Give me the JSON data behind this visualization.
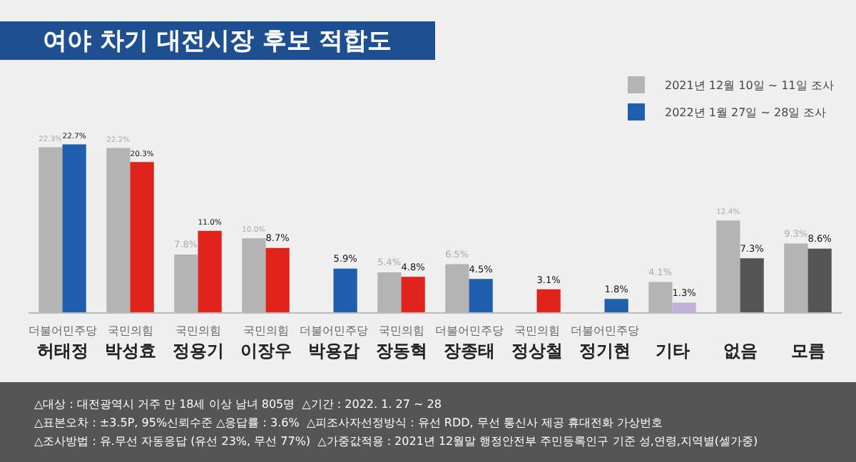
{
  "chart_data": {
    "type": "bar",
    "title": "여야 차기 대전시장 후보 적합도",
    "categories": [
      "더불어민주당\n허태정",
      "국민의힘\n박성효",
      "국민의힘\n정용기",
      "국민의힘\n이장우",
      "더불어민주당\n박용갑",
      "국민의힘\n장동혁",
      "더불어민주당\n장종태",
      "국민의힘\n정상철",
      "더불어민주당\n정기현",
      "기타",
      "없음",
      "모름"
    ],
    "series": [
      {
        "name": "2021년 12월 10일 ~ 11일 조사",
        "color": "#b4b4b4",
        "values": [
          22.3,
          22.2,
          7.8,
          10.0,
          null,
          5.4,
          6.5,
          null,
          null,
          4.1,
          12.4,
          9.3
        ],
        "value_labels": [
          "22.3%",
          "22.2%",
          "7.8%",
          "10.0%",
          null,
          "5.4%",
          "6.5%",
          null,
          null,
          "4.1%",
          "12.4%",
          "9.3%"
        ]
      },
      {
        "name": "2022년 1월 27일 ~ 28일 조사",
        "color": "#1f5fad",
        "colors": [
          "#1f5fad",
          "#e0231c",
          "#e0231c",
          "#e0231c",
          "#1f5fad",
          "#e0231c",
          "#1f5fad",
          "#e0231c",
          "#1f5fad",
          "#c2b0dc",
          "#555555",
          "#555555"
        ],
        "values": [
          22.7,
          20.3,
          11.0,
          8.7,
          5.9,
          4.8,
          4.5,
          3.1,
          1.8,
          1.3,
          7.3,
          8.6
        ],
        "value_labels": [
          "22.7%",
          "20.3%",
          "11.0%",
          "8.7%",
          "5.9%",
          "4.8%",
          "4.5%",
          "3.1%",
          "1.8%",
          "1.3%",
          "7.3%",
          "8.6%"
        ]
      }
    ],
    "legend": "top right",
    "grid": false,
    "annotations": [
      "△대상 : 대전광역시 거주 만 18세 이상 남녀 805명  △기간 : 2022. 1. 27 ~ 28",
      "△표본오차 : ±3.5P, 95%신뢰수준 △응답률 : 3.6%  △피조사자선정방식 : 유선 RDD, 무선 통신사 제공 휴대전화 가상번호",
      "△조사방법 : 유.무선 자동응답 (유선 23%, 무선 77%)  △가중값적용 : 2021년 12월말 행정안전부 주민등록인구 기준 성,연령,지역별(셀가중)"
    ]
  }
}
